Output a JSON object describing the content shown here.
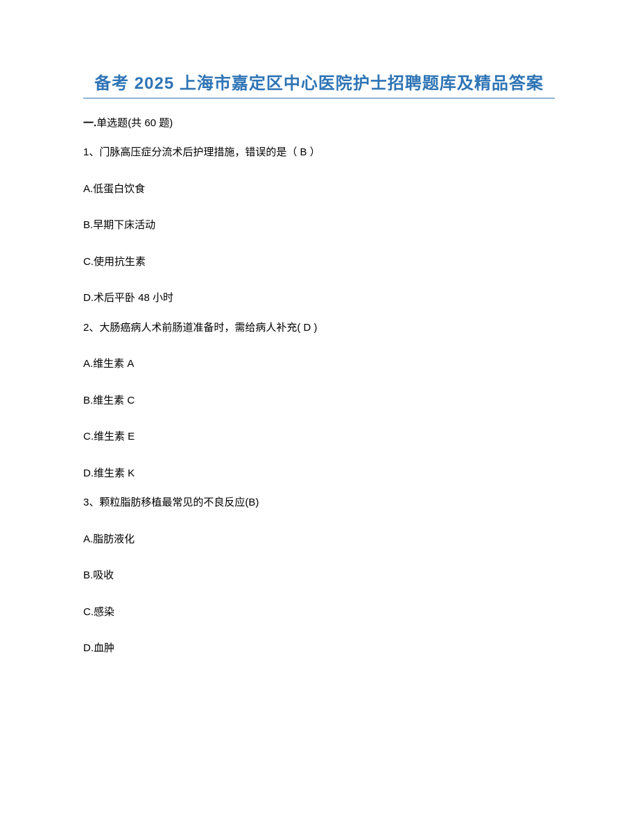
{
  "document": {
    "title": "备考 2025 上海市嘉定区中心医院护士招聘题库及精品答案",
    "title_color": "#2e74b5",
    "underline_color": "#2e74b5",
    "background_color": "#ffffff",
    "text_color": "#000000",
    "section": {
      "prefix": "一.",
      "label": "单选题",
      "suffix": "(共 60 题)"
    },
    "questions": [
      {
        "number": "1、",
        "text": "门脉高压症分流术后护理措施，错误的是（   B   ）",
        "options": [
          "A.低蛋白饮食",
          "B.早期下床活动",
          "C.使用抗生素",
          "D.术后平卧 48 小时"
        ]
      },
      {
        "number": "2、",
        "text": "大肠癌病人术前肠道准备时，需给病人补充(   D   )",
        "options": [
          "A.维生素 A",
          "B.维生素 C",
          "C.维生素 E",
          "D.维生素 K"
        ]
      },
      {
        "number": "3、",
        "text": "颗粒脂肪移植最常见的不良反应(B)",
        "options": [
          "A.脂肪液化",
          "B.吸收",
          "C.感染",
          "D.血肿"
        ]
      }
    ]
  }
}
